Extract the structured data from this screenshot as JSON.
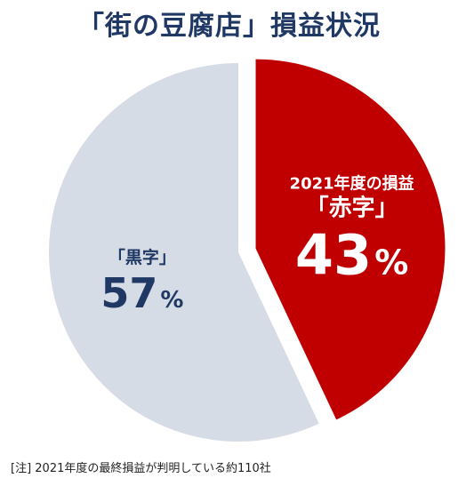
{
  "chart_data": {
    "type": "pie",
    "title": "「街の豆腐店」損益状況",
    "slices": [
      {
        "label_lines": [
          "2021年度の損益",
          "「赤字」"
        ],
        "value": 43,
        "unit": "%",
        "color": "#c00000",
        "text_color": "#ffffff",
        "exploded": true
      },
      {
        "label_lines": [
          "「黒字」"
        ],
        "value": 57,
        "unit": "%",
        "color": "#d6dce5",
        "text_color": "#1f3864",
        "exploded": false
      }
    ],
    "note": "[注] 2021年度の最終損益が判明している約110社"
  },
  "colors": {
    "title": "#1f3864",
    "background": "#ffffff"
  }
}
